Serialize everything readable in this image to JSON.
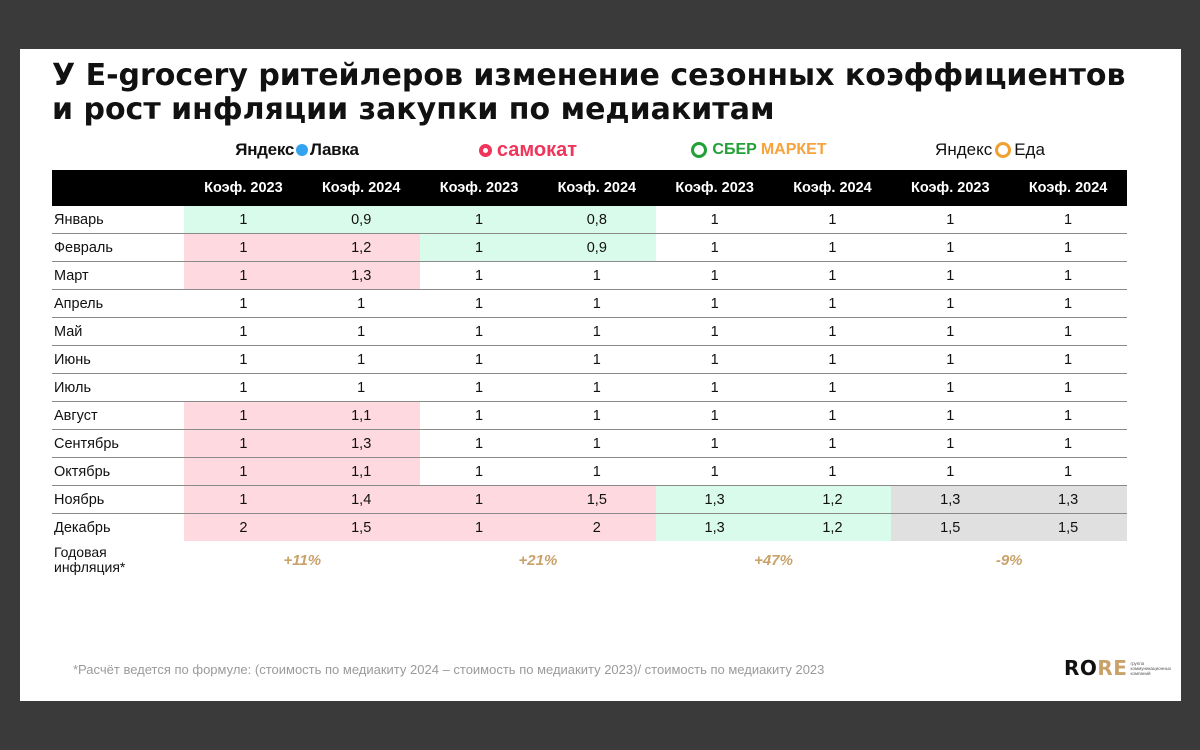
{
  "title": "У E-grocery ритейлеров изменение сезонных коэффициентов и рост инфляции закупки по медиакитам",
  "brands": [
    {
      "text_a": "Яндекс",
      "text_b": "Лавка",
      "icon": "heart-icon"
    },
    {
      "text": "самокат",
      "icon": "ring-icon"
    },
    {
      "text_a": "СБЕР",
      "text_b": "МАРКЕТ",
      "icon": "check-circle-icon"
    },
    {
      "text_a": "Яндекс",
      "text_b": "Еда",
      "icon": "swirl-icon"
    }
  ],
  "table": {
    "headers": [
      "",
      "Коэф. 2023",
      "Коэф. 2024",
      "Коэф. 2023",
      "Коэф. 2024",
      "Коэф. 2023",
      "Коэф. 2024",
      "Коэф. 2023",
      "Коэф. 2024"
    ],
    "rows": [
      {
        "month": "Январь",
        "values": [
          "1",
          "0,9",
          "1",
          "0,8",
          "1",
          "1",
          "1",
          "1"
        ],
        "fills": [
          "g",
          "g",
          "g",
          "g",
          "",
          "",
          "",
          ""
        ]
      },
      {
        "month": "Февраль",
        "values": [
          "1",
          "1,2",
          "1",
          "0,9",
          "1",
          "1",
          "1",
          "1"
        ],
        "fills": [
          "p",
          "p",
          "g",
          "g",
          "",
          "",
          "",
          ""
        ]
      },
      {
        "month": "Март",
        "values": [
          "1",
          "1,3",
          "1",
          "1",
          "1",
          "1",
          "1",
          "1"
        ],
        "fills": [
          "p",
          "p",
          "",
          "",
          "",
          "",
          "",
          ""
        ]
      },
      {
        "month": "Апрель",
        "values": [
          "1",
          "1",
          "1",
          "1",
          "1",
          "1",
          "1",
          "1"
        ],
        "fills": [
          "",
          "",
          "",
          "",
          "",
          "",
          "",
          ""
        ]
      },
      {
        "month": "Май",
        "values": [
          "1",
          "1",
          "1",
          "1",
          "1",
          "1",
          "1",
          "1"
        ],
        "fills": [
          "",
          "",
          "",
          "",
          "",
          "",
          "",
          ""
        ]
      },
      {
        "month": "Июнь",
        "values": [
          "1",
          "1",
          "1",
          "1",
          "1",
          "1",
          "1",
          "1"
        ],
        "fills": [
          "",
          "",
          "",
          "",
          "",
          "",
          "",
          ""
        ]
      },
      {
        "month": "Июль",
        "values": [
          "1",
          "1",
          "1",
          "1",
          "1",
          "1",
          "1",
          "1"
        ],
        "fills": [
          "",
          "",
          "",
          "",
          "",
          "",
          "",
          ""
        ]
      },
      {
        "month": "Август",
        "values": [
          "1",
          "1,1",
          "1",
          "1",
          "1",
          "1",
          "1",
          "1"
        ],
        "fills": [
          "p",
          "p",
          "",
          "",
          "",
          "",
          "",
          ""
        ]
      },
      {
        "month": "Сентябрь",
        "values": [
          "1",
          "1,3",
          "1",
          "1",
          "1",
          "1",
          "1",
          "1"
        ],
        "fills": [
          "p",
          "p",
          "",
          "",
          "",
          "",
          "",
          ""
        ]
      },
      {
        "month": "Октябрь",
        "values": [
          "1",
          "1,1",
          "1",
          "1",
          "1",
          "1",
          "1",
          "1"
        ],
        "fills": [
          "p",
          "p",
          "",
          "",
          "",
          "",
          "",
          ""
        ]
      },
      {
        "month": "Ноябрь",
        "values": [
          "1",
          "1,4",
          "1",
          "1,5",
          "1,3",
          "1,2",
          "1,3",
          "1,3"
        ],
        "fills": [
          "p",
          "p",
          "p",
          "p",
          "g",
          "g",
          "y",
          "y"
        ]
      },
      {
        "month": "Декабрь",
        "values": [
          "2",
          "1,5",
          "1",
          "2",
          "1,3",
          "1,2",
          "1,5",
          "1,5"
        ],
        "fills": [
          "p",
          "p",
          "p",
          "p",
          "g",
          "g",
          "y",
          "y"
        ]
      }
    ],
    "inflation_label_1": "Годовая",
    "inflation_label_2": "инфляция*",
    "inflation": [
      "+11%",
      "+21%",
      "+47%",
      "-9%"
    ]
  },
  "colors": {
    "green": "#d9fbec",
    "pink": "#ffd9e0",
    "grey": "#e0e0e0",
    "gold": "#c9a26a"
  },
  "footnote": "*Расчёт ведется по формуле: (стоимость по медиакиту 2024 – стоимость по медиакиту 2023)/ стоимость по медиакиту 2023",
  "brand_logo": {
    "word_a": "RO",
    "word_b": "RE",
    "sub": "группа коммуникационных компаний"
  }
}
